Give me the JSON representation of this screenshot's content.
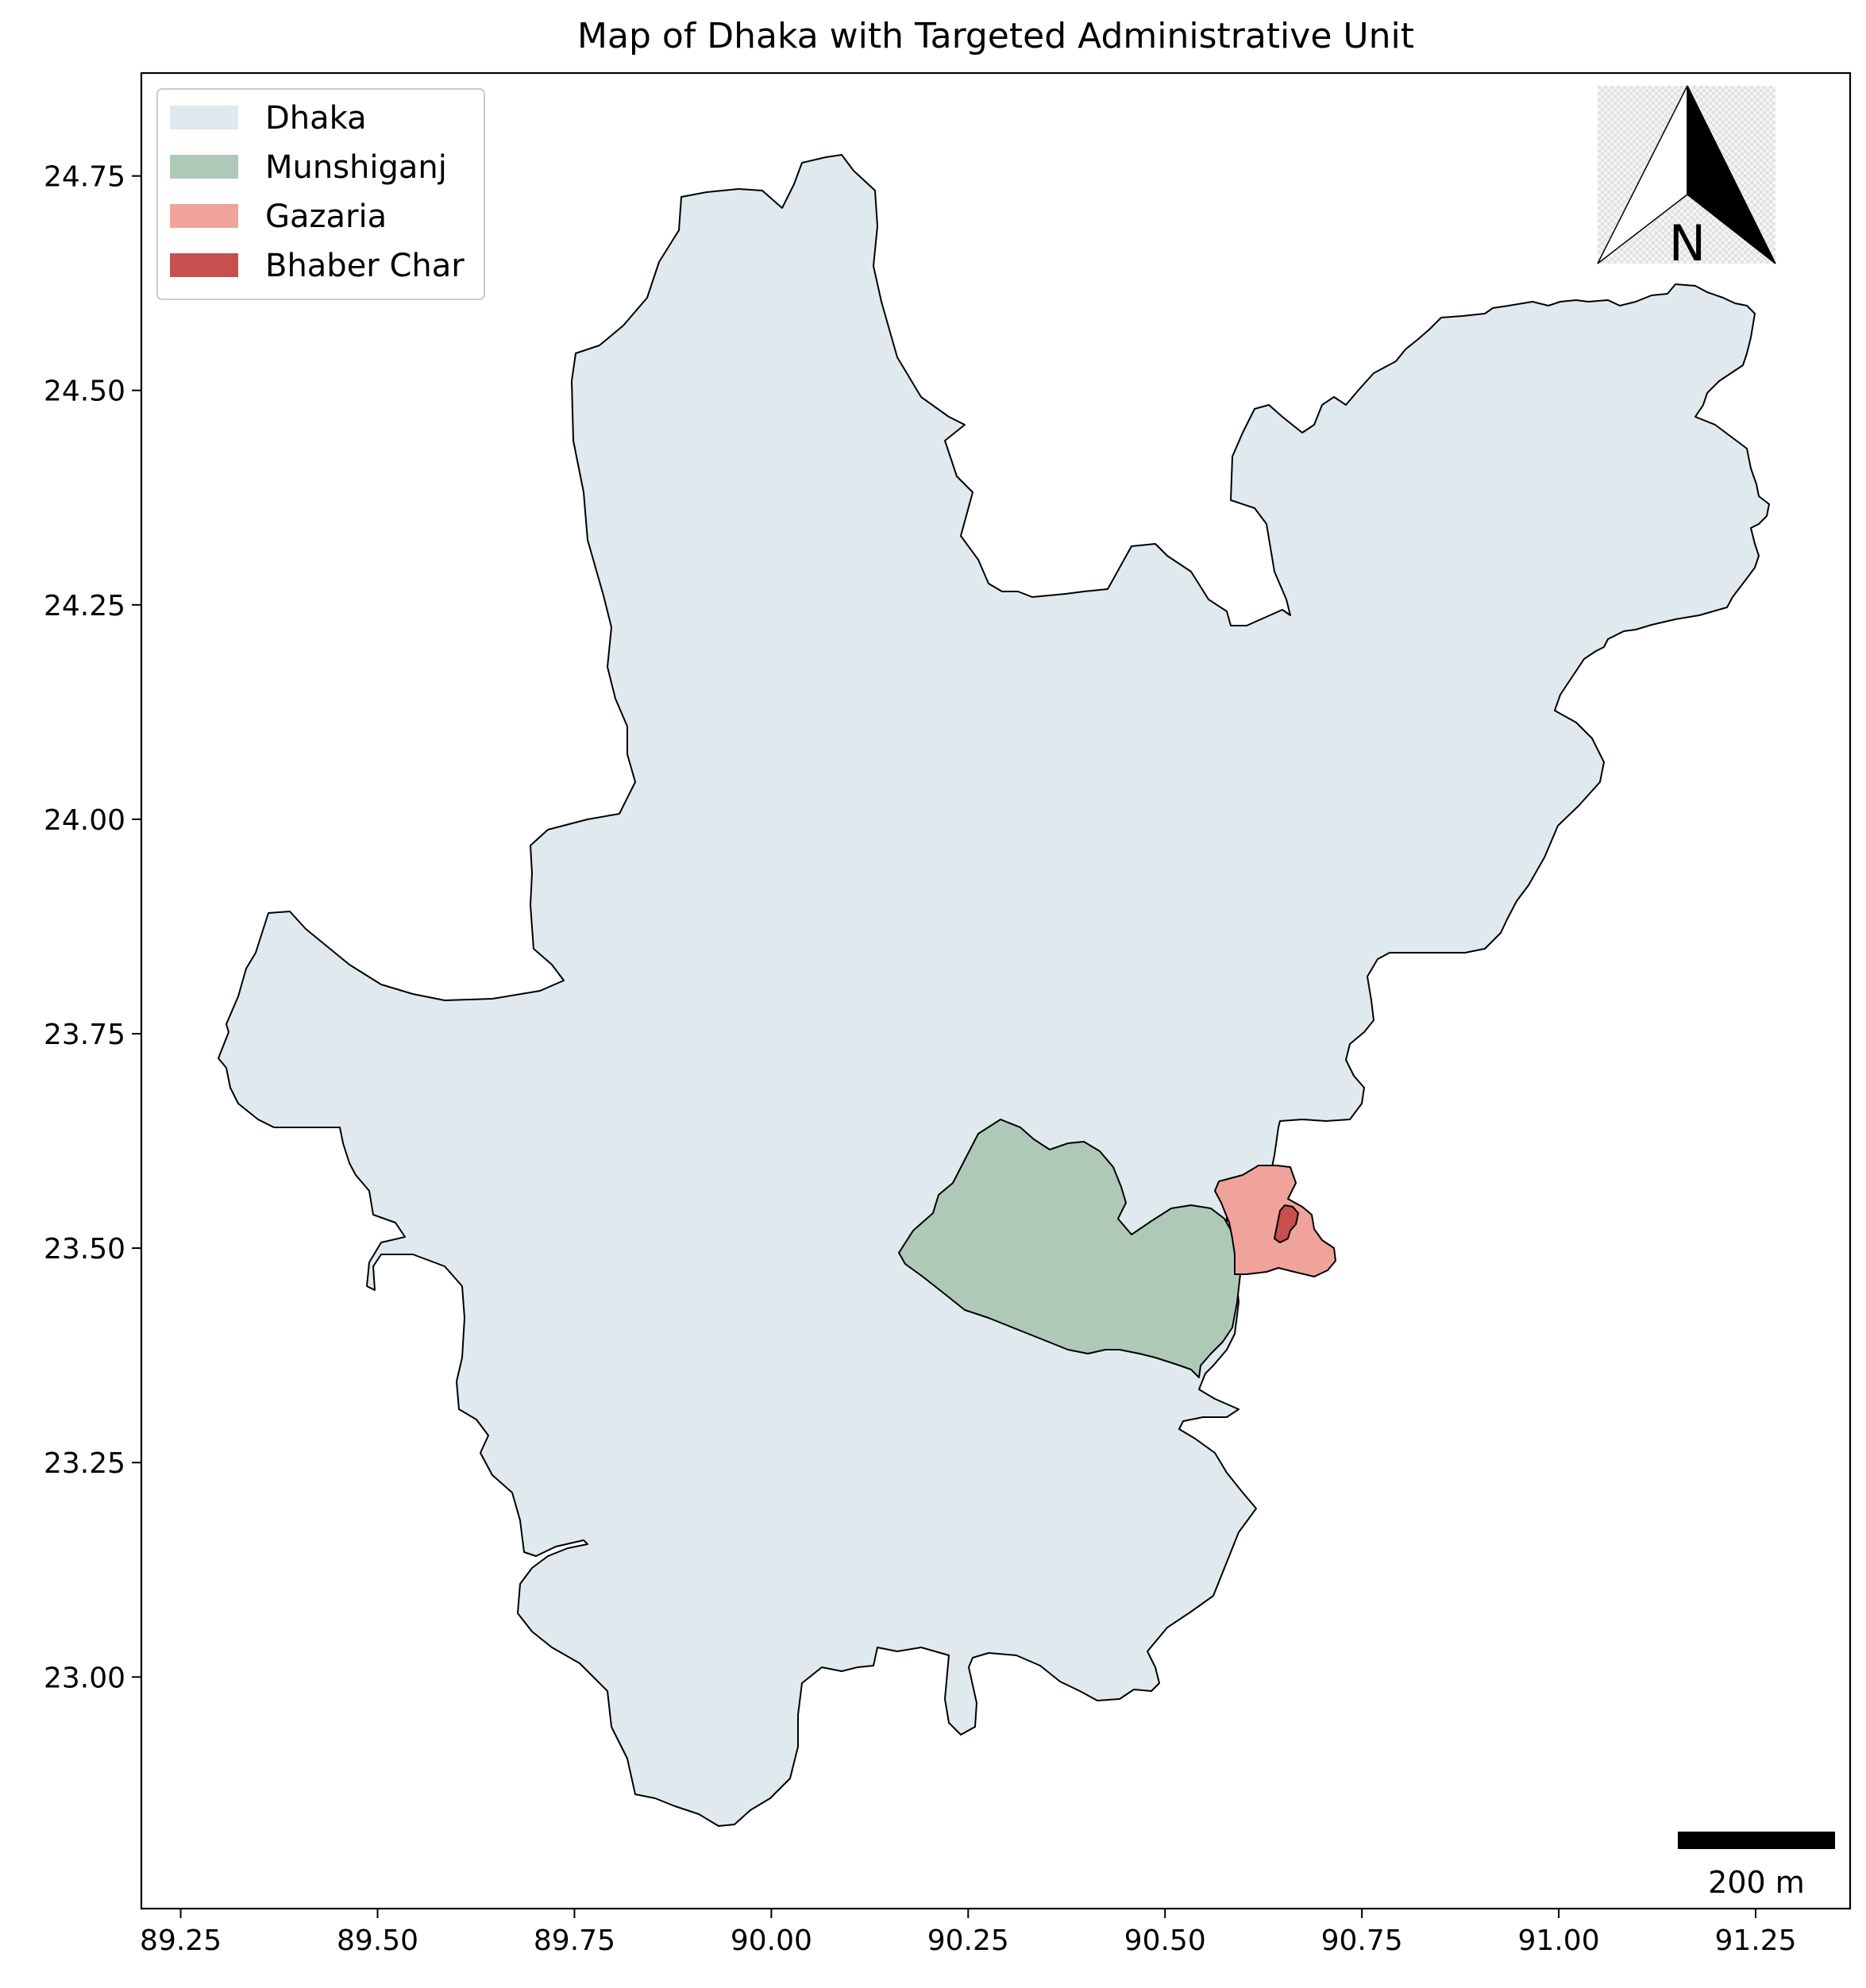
{
  "title": "Map of Dhaka with Targeted Administrative Unit",
  "legend": {
    "items": [
      {
        "label": "Dhaka",
        "color": "#dfe9ee"
      },
      {
        "label": "Munshiganj",
        "color": "#aec9b8"
      },
      {
        "label": "Gazaria",
        "color": "#efa39b"
      },
      {
        "label": "Bhaber Char",
        "color": "#c94f4f"
      }
    ]
  },
  "axes": {
    "x_ticks": [
      "89.25",
      "89.50",
      "89.75",
      "90.00",
      "90.25",
      "90.50",
      "90.75",
      "91.00",
      "91.25"
    ],
    "y_ticks": [
      "24.75",
      "24.50",
      "24.25",
      "24.00",
      "23.75",
      "23.50",
      "23.25",
      "23.00"
    ],
    "x_range": [
      89.2,
      91.37
    ],
    "y_range": [
      22.73,
      24.87
    ]
  },
  "north_arrow": {
    "label": "N"
  },
  "scale_bar": {
    "label": "200 m"
  },
  "colors": {
    "outline": "#000000",
    "scale_bar": "#000000"
  }
}
